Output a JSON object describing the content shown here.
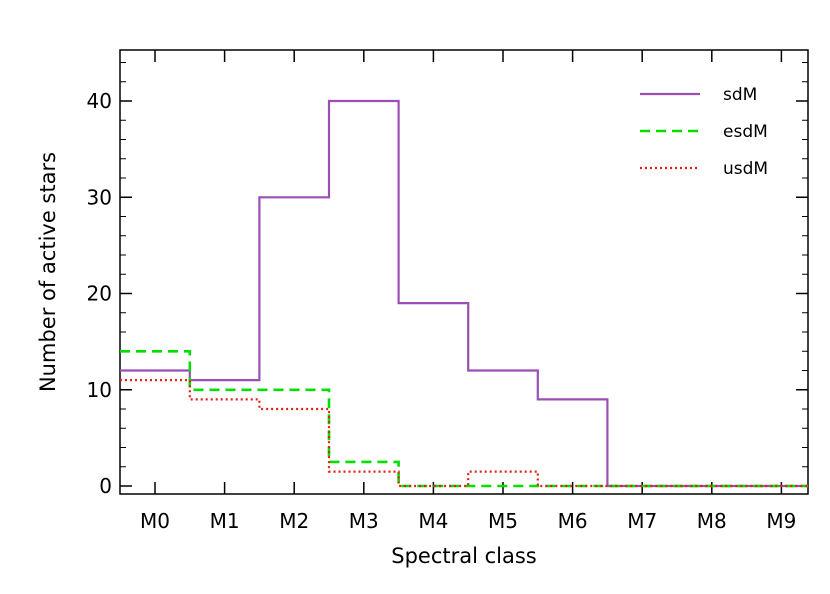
{
  "chart_data": {
    "type": "line",
    "step": true,
    "xlabel": "Spectral class",
    "ylabel": "Number of active stars",
    "categories": [
      "M0",
      "M1",
      "M2",
      "M3",
      "M4",
      "M5",
      "M6",
      "M7",
      "M8",
      "M9"
    ],
    "ylim": [
      0,
      45
    ],
    "yticks": [
      0,
      10,
      20,
      30,
      40
    ],
    "grid": false,
    "legend_position": "top-right",
    "series": [
      {
        "name": "sdM",
        "color": "#9b4fb4",
        "dash": "solid",
        "values": [
          12,
          11,
          30,
          40,
          19,
          12,
          9,
          0,
          0,
          0
        ]
      },
      {
        "name": "esdM",
        "color": "#00e000",
        "dash": "dashed",
        "values": [
          14,
          10,
          10,
          2.5,
          0,
          0,
          0,
          0,
          0,
          0
        ]
      },
      {
        "name": "usdM",
        "color": "#e02010",
        "dash": "dotted",
        "values": [
          11,
          9,
          8,
          1.5,
          0,
          1.5,
          0,
          0,
          0,
          0
        ]
      }
    ]
  }
}
